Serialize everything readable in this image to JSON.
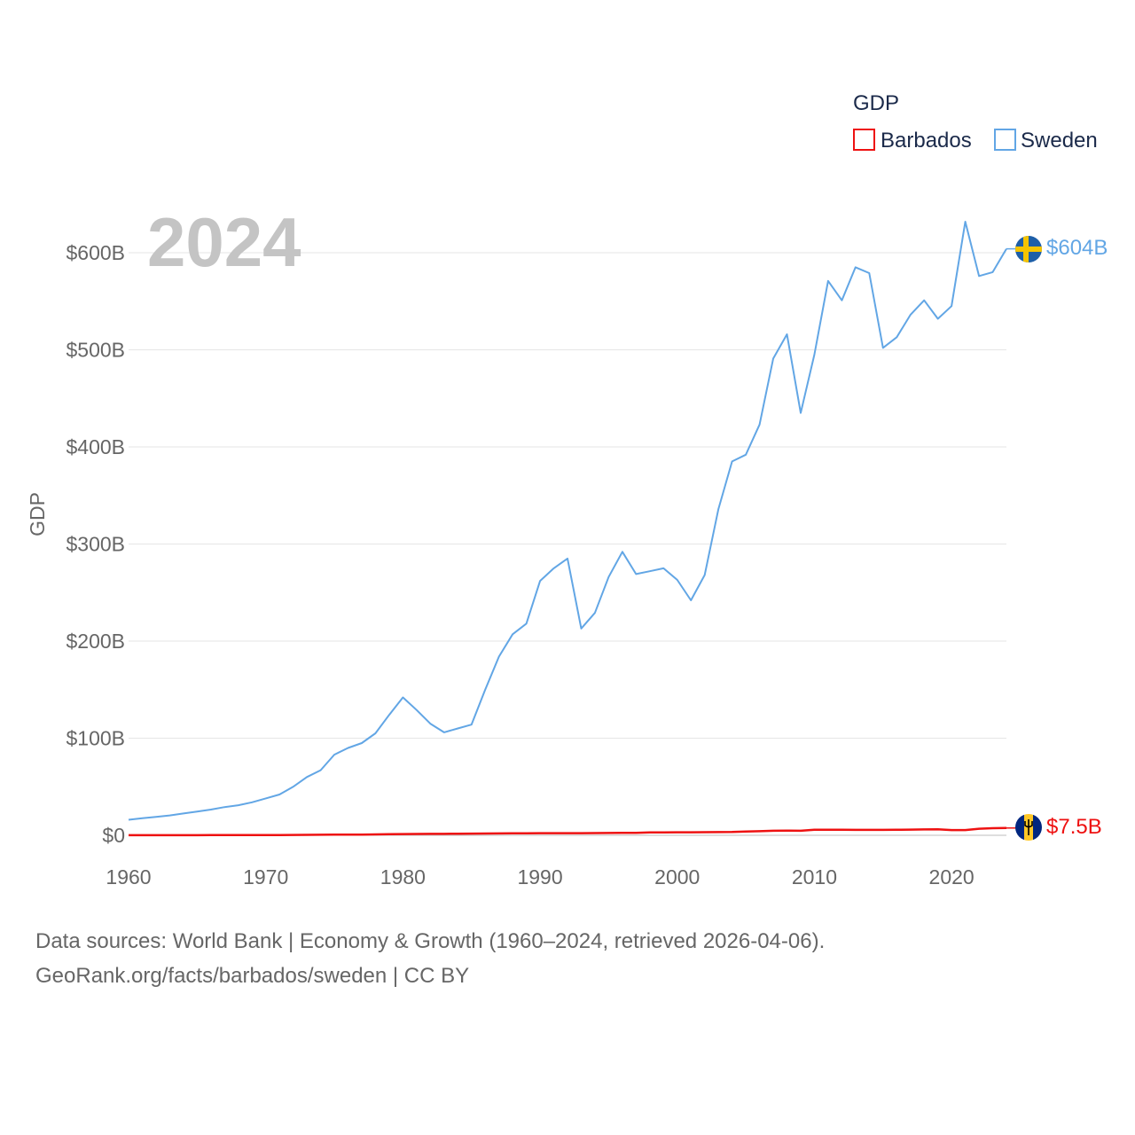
{
  "chart_data": {
    "type": "line",
    "legend_title": "GDP",
    "ylabel": "GDP",
    "xlabel": "",
    "year_label": "2024",
    "xlim": [
      1960,
      2024
    ],
    "ylim": [
      0,
      600
    ],
    "y_unit": "billion USD",
    "x_ticks": [
      1960,
      1970,
      1980,
      1990,
      2000,
      2010,
      2020
    ],
    "x_tick_labels": [
      "1960",
      "1970",
      "1980",
      "1990",
      "2000",
      "2010",
      "2020"
    ],
    "y_ticks": [
      0,
      100,
      200,
      300,
      400,
      500,
      600
    ],
    "y_tick_labels": [
      "$0",
      "$100B",
      "$200B",
      "$300B",
      "$400B",
      "$500B",
      "$600B"
    ],
    "grid": true,
    "legend_position": "top-right",
    "x": [
      1960,
      1961,
      1962,
      1963,
      1964,
      1965,
      1966,
      1967,
      1968,
      1969,
      1970,
      1971,
      1972,
      1973,
      1974,
      1975,
      1976,
      1977,
      1978,
      1979,
      1980,
      1981,
      1982,
      1983,
      1984,
      1985,
      1986,
      1987,
      1988,
      1989,
      1990,
      1991,
      1992,
      1993,
      1994,
      1995,
      1996,
      1997,
      1998,
      1999,
      2000,
      2001,
      2002,
      2003,
      2004,
      2005,
      2006,
      2007,
      2008,
      2009,
      2010,
      2011,
      2012,
      2013,
      2014,
      2015,
      2016,
      2017,
      2018,
      2019,
      2020,
      2021,
      2022,
      2023,
      2024
    ],
    "series": [
      {
        "name": "Barbados",
        "color": "#ee1111",
        "end_label": "$7.5B",
        "flag": "barbados-flag",
        "values": [
          0.08,
          0.09,
          0.1,
          0.11,
          0.12,
          0.13,
          0.15,
          0.17,
          0.2,
          0.23,
          0.27,
          0.3,
          0.36,
          0.45,
          0.55,
          0.6,
          0.65,
          0.75,
          0.9,
          1.1,
          1.3,
          1.4,
          1.45,
          1.5,
          1.6,
          1.7,
          1.8,
          1.9,
          2.0,
          2.1,
          2.2,
          2.2,
          2.2,
          2.2,
          2.3,
          2.4,
          2.5,
          2.6,
          2.9,
          3.0,
          3.1,
          3.1,
          3.2,
          3.3,
          3.4,
          3.8,
          4.2,
          4.7,
          4.8,
          4.7,
          5.7,
          5.7,
          5.7,
          5.6,
          5.6,
          5.6,
          5.7,
          5.8,
          6.0,
          6.1,
          5.4,
          5.4,
          6.8,
          7.3,
          7.5
        ]
      },
      {
        "name": "Sweden",
        "color": "#62a6e5",
        "end_label": "$604B",
        "flag": "sweden-flag",
        "values": [
          16,
          17.5,
          19,
          20.5,
          22.5,
          24.5,
          26.5,
          29,
          31,
          34,
          38,
          42,
          50,
          60,
          67,
          83,
          90,
          95,
          105,
          124,
          142,
          129,
          115,
          106,
          110,
          114,
          150,
          184,
          207,
          218,
          262,
          275,
          285,
          213,
          229,
          266,
          292,
          269,
          272,
          275,
          263,
          242,
          268,
          336,
          385,
          392,
          423,
          491,
          516,
          435,
          495,
          571,
          551,
          585,
          579,
          502,
          513,
          536,
          551,
          532,
          545,
          632,
          576,
          580,
          604
        ]
      }
    ]
  },
  "source_lines": [
    "Data sources: World Bank | Economy & Growth (1960–2024, retrieved 2026-04-06).",
    "GeoRank.org/facts/barbados/sweden | CC BY"
  ]
}
